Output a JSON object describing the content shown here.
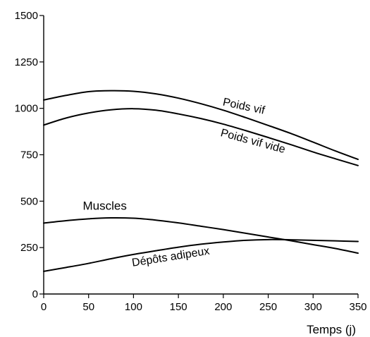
{
  "chart_data": {
    "type": "line",
    "title": "",
    "xlabel": "Temps (j)",
    "ylabel": "",
    "xlim": [
      0,
      350
    ],
    "ylim": [
      0,
      1500
    ],
    "x_ticks": [
      0,
      50,
      100,
      150,
      200,
      250,
      300,
      350
    ],
    "y_ticks": [
      0,
      250,
      500,
      750,
      1000,
      1250,
      1500
    ],
    "grid": false,
    "legend": "none",
    "x": [
      0,
      25,
      50,
      75,
      100,
      125,
      150,
      175,
      200,
      225,
      250,
      275,
      300,
      325,
      350
    ],
    "series": [
      {
        "name": "Poids vif",
        "values": [
          1045,
          1070,
          1090,
          1095,
          1092,
          1078,
          1055,
          1025,
          990,
          950,
          908,
          865,
          818,
          770,
          725
        ]
      },
      {
        "name": "Poids vif vide",
        "values": [
          910,
          948,
          975,
          992,
          998,
          990,
          970,
          945,
          915,
          880,
          843,
          805,
          765,
          728,
          692
        ]
      },
      {
        "name": "Muscles",
        "values": [
          382,
          395,
          405,
          410,
          408,
          398,
          383,
          365,
          347,
          327,
          307,
          287,
          266,
          245,
          220
        ]
      },
      {
        "name": "Dépôts adipeux",
        "values": [
          122,
          143,
          165,
          190,
          213,
          233,
          252,
          268,
          280,
          289,
          293,
          292,
          289,
          286,
          283
        ]
      }
    ]
  }
}
